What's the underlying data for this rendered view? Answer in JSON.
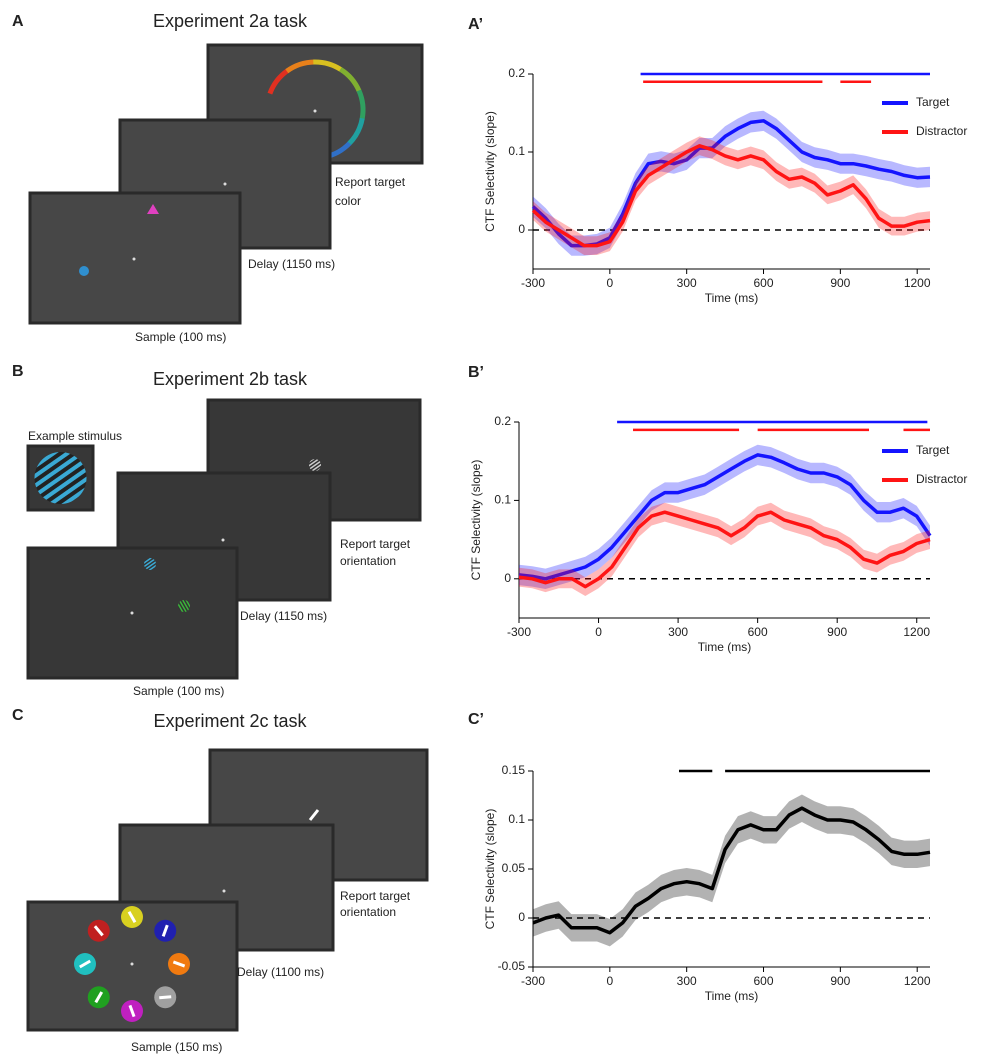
{
  "task_panels": [
    {
      "letter": "A",
      "title": "Experiment 2a task",
      "response_label": [
        "Report target",
        "color"
      ],
      "delay_label": "Delay (1150 ms)",
      "sample_label": "Sample (100 ms)"
    },
    {
      "letter": "B",
      "title": "Experiment 2b task",
      "example_label": "Example stimulus",
      "response_label": [
        "Report target",
        "orientation"
      ],
      "delay_label": "Delay (1150 ms)",
      "sample_label": "Sample (100 ms)"
    },
    {
      "letter": "C",
      "title": "Experiment 2c task",
      "response_label": [
        "Report target",
        "orientation"
      ],
      "delay_label": "Delay (1100 ms)",
      "sample_label": "Sample (150 ms)"
    }
  ],
  "chart_data": [
    {
      "type": "line",
      "panel_label": "A’",
      "xlabel": "Time (ms)",
      "ylabel": "CTF Selectivity (slope)",
      "x": [
        -300,
        -250,
        -200,
        -150,
        -100,
        -50,
        0,
        50,
        100,
        150,
        200,
        250,
        300,
        350,
        400,
        450,
        500,
        550,
        600,
        650,
        700,
        750,
        800,
        850,
        900,
        950,
        1000,
        1050,
        1100,
        1150,
        1200,
        1250
      ],
      "xlim": [
        -300,
        1250
      ],
      "xticks": [
        -300,
        0,
        300,
        600,
        900,
        1200
      ],
      "ylim": [
        -0.05,
        0.2
      ],
      "yticks": [
        0,
        0.1,
        0.2
      ],
      "hline": 0,
      "legend": "upper right",
      "series": [
        {
          "name": "Target",
          "color": "#1414ff",
          "error": 0.013,
          "significant": [
            [
              120,
              1250
            ]
          ],
          "significant_y": 0.2,
          "values": [
            0.03,
            0.015,
            -0.005,
            -0.02,
            -0.02,
            -0.018,
            -0.01,
            0.02,
            0.06,
            0.085,
            0.088,
            0.085,
            0.09,
            0.105,
            0.105,
            0.12,
            0.13,
            0.138,
            0.14,
            0.13,
            0.115,
            0.1,
            0.093,
            0.09,
            0.085,
            0.085,
            0.082,
            0.078,
            0.075,
            0.07,
            0.067,
            0.068
          ]
        },
        {
          "name": "Distractor",
          "color": "#ff1414",
          "error": 0.012,
          "significant": [
            [
              130,
              830
            ],
            [
              900,
              1020
            ]
          ],
          "significant_y": 0.19,
          "values": [
            0.025,
            0.01,
            0,
            -0.01,
            -0.02,
            -0.02,
            -0.015,
            0.01,
            0.05,
            0.07,
            0.08,
            0.09,
            0.1,
            0.108,
            0.103,
            0.095,
            0.09,
            0.095,
            0.09,
            0.075,
            0.065,
            0.068,
            0.06,
            0.045,
            0.05,
            0.058,
            0.04,
            0.015,
            0.005,
            0.005,
            0.01,
            0.012
          ]
        }
      ]
    },
    {
      "type": "line",
      "panel_label": "B’",
      "xlabel": "Time (ms)",
      "ylabel": "CTF Selectivity (slope)",
      "x": [
        -300,
        -250,
        -200,
        -150,
        -100,
        -50,
        0,
        50,
        100,
        150,
        200,
        250,
        300,
        350,
        400,
        450,
        500,
        550,
        600,
        650,
        700,
        750,
        800,
        850,
        900,
        950,
        1000,
        1050,
        1100,
        1150,
        1200,
        1250
      ],
      "xlim": [
        -300,
        1250
      ],
      "xticks": [
        -300,
        0,
        300,
        600,
        900,
        1200
      ],
      "ylim": [
        -0.05,
        0.2
      ],
      "yticks": [
        0,
        0.1,
        0.2
      ],
      "hline": 0,
      "legend": "upper right",
      "series": [
        {
          "name": "Target",
          "color": "#1414ff",
          "error": 0.013,
          "significant": [
            [
              70,
              1240
            ]
          ],
          "significant_y": 0.2,
          "values": [
            0.005,
            0.003,
            0,
            0.005,
            0.01,
            0.015,
            0.025,
            0.04,
            0.06,
            0.08,
            0.1,
            0.11,
            0.11,
            0.115,
            0.12,
            0.13,
            0.14,
            0.15,
            0.158,
            0.155,
            0.148,
            0.14,
            0.135,
            0.135,
            0.13,
            0.12,
            0.1,
            0.085,
            0.085,
            0.09,
            0.08,
            0.055
          ]
        },
        {
          "name": "Distractor",
          "color": "#ff1414",
          "error": 0.012,
          "significant": [
            [
              130,
              530
            ],
            [
              600,
              1020
            ],
            [
              1150,
              1250
            ]
          ],
          "significant_y": 0.19,
          "values": [
            0.002,
            0,
            -0.005,
            0,
            0,
            -0.01,
            0,
            0.015,
            0.04,
            0.065,
            0.08,
            0.085,
            0.08,
            0.075,
            0.07,
            0.065,
            0.055,
            0.065,
            0.08,
            0.085,
            0.075,
            0.07,
            0.065,
            0.055,
            0.05,
            0.04,
            0.025,
            0.02,
            0.03,
            0.035,
            0.045,
            0.05
          ]
        }
      ]
    },
    {
      "type": "line",
      "panel_label": "C’",
      "xlabel": "Time (ms)",
      "ylabel": "CTF Selectivity (slope)",
      "x": [
        -300,
        -250,
        -200,
        -150,
        -100,
        -50,
        0,
        50,
        100,
        150,
        200,
        250,
        300,
        350,
        400,
        450,
        500,
        550,
        600,
        650,
        700,
        750,
        800,
        850,
        900,
        950,
        1000,
        1050,
        1100,
        1150,
        1200,
        1250
      ],
      "xlim": [
        -300,
        1250
      ],
      "xticks": [
        -300,
        0,
        300,
        600,
        900,
        1200
      ],
      "ylim": [
        -0.05,
        0.15
      ],
      "yticks": [
        -0.05,
        0,
        0.05,
        0.1,
        0.15
      ],
      "hline": 0,
      "series": [
        {
          "color": "#000000",
          "error": 0.014,
          "significant": [
            [
              270,
              400
            ],
            [
              450,
              1250
            ]
          ],
          "significant_y": 0.15,
          "values": [
            -0.005,
            0,
            0.003,
            -0.01,
            -0.01,
            -0.01,
            -0.015,
            -0.005,
            0.012,
            0.02,
            0.03,
            0.035,
            0.037,
            0.035,
            0.03,
            0.07,
            0.09,
            0.095,
            0.09,
            0.09,
            0.105,
            0.112,
            0.105,
            0.1,
            0.1,
            0.098,
            0.09,
            0.08,
            0.068,
            0.065,
            0.065,
            0.067
          ]
        }
      ]
    }
  ]
}
